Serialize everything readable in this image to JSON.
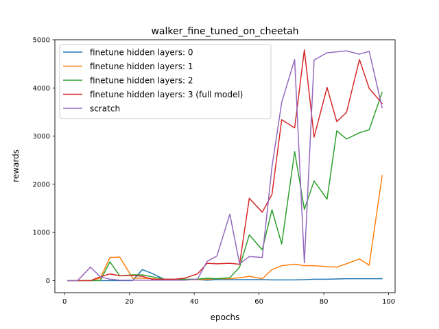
{
  "chart_data": {
    "type": "line",
    "title": "walker_fine_tuned_on_cheetah",
    "xlabel": "epochs",
    "ylabel": "rewards",
    "xlim": [
      -3,
      102
    ],
    "ylim": [
      -250,
      5000
    ],
    "xticks": [
      0,
      20,
      40,
      60,
      80,
      100
    ],
    "yticks": [
      0,
      1000,
      2000,
      3000,
      4000,
      5000
    ],
    "grid": false,
    "legend_position": "upper left",
    "x": [
      1,
      4,
      8,
      11,
      14,
      17,
      21,
      24,
      27,
      31,
      34,
      37,
      41,
      44,
      47,
      51,
      54,
      57,
      61,
      64,
      67,
      71,
      74,
      77,
      81,
      84,
      87,
      91,
      94,
      98
    ],
    "series": [
      {
        "name": "finetune hidden layers: 0",
        "color": "#1f77b4",
        "values": [
          0,
          0,
          0,
          0,
          0,
          0,
          0,
          230,
          150,
          20,
          20,
          20,
          20,
          10,
          20,
          20,
          20,
          20,
          20,
          15,
          15,
          15,
          20,
          30,
          30,
          35,
          40,
          40,
          40,
          40
        ]
      },
      {
        "name": "finetune hidden layers: 1",
        "color": "#ff7f0e",
        "values": [
          0,
          0,
          0,
          50,
          480,
          490,
          50,
          50,
          40,
          20,
          20,
          20,
          20,
          30,
          40,
          40,
          60,
          90,
          40,
          230,
          310,
          340,
          310,
          310,
          290,
          280,
          350,
          450,
          320,
          2180
        ]
      },
      {
        "name": "finetune hidden layers: 2",
        "color": "#2ca02c",
        "values": [
          0,
          0,
          0,
          0,
          390,
          100,
          120,
          120,
          80,
          30,
          30,
          30,
          30,
          50,
          40,
          60,
          280,
          950,
          640,
          1470,
          760,
          2680,
          1480,
          2070,
          1690,
          3110,
          2940,
          3070,
          3130,
          3910
        ]
      },
      {
        "name": "finetune hidden layers: 3 (full model)",
        "color": "#d62728",
        "values": [
          0,
          0,
          0,
          80,
          140,
          100,
          110,
          90,
          30,
          30,
          30,
          50,
          140,
          360,
          350,
          360,
          340,
          1710,
          1420,
          1790,
          3340,
          3170,
          4790,
          2980,
          4010,
          3300,
          3490,
          4590,
          3990,
          3680
        ]
      },
      {
        "name": "scratch",
        "color": "#9467bd",
        "values": [
          0,
          0,
          280,
          80,
          30,
          10,
          10,
          10,
          10,
          10,
          10,
          10,
          30,
          400,
          510,
          1380,
          350,
          500,
          480,
          2360,
          3700,
          4590,
          370,
          4580,
          4730,
          4750,
          4770,
          4700,
          4760,
          3590
        ]
      }
    ]
  }
}
